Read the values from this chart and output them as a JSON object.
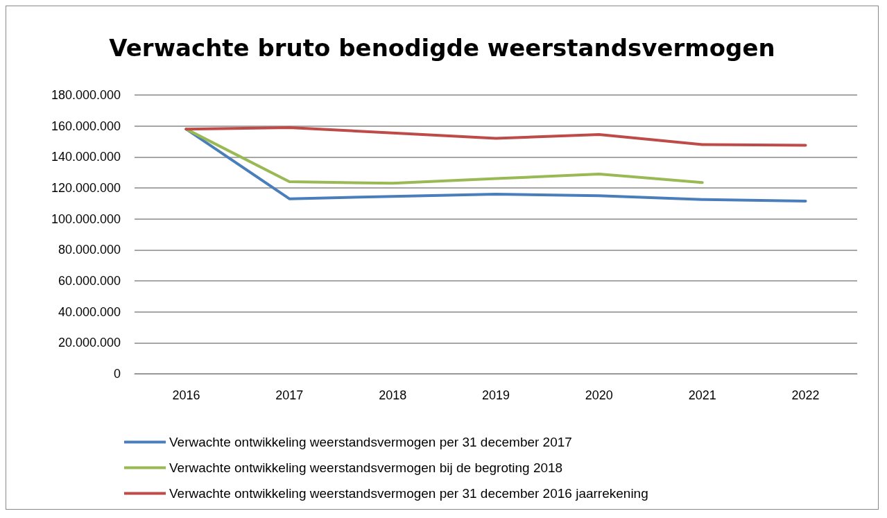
{
  "chart_data": {
    "type": "line",
    "title": "Verwachte bruto benodigde weerstandsvermogen",
    "categories": [
      "2016",
      "2017",
      "2018",
      "2019",
      "2020",
      "2021",
      "2022"
    ],
    "series": [
      {
        "name": "Verwachte ontwikkeling weerstandsvermogen per 31 december 2017",
        "color": "#4a7ebb",
        "values": [
          158000000,
          113000000,
          114500000,
          116000000,
          115000000,
          112500000,
          111500000
        ]
      },
      {
        "name": "Verwachte ontwikkeling weerstandsvermogen bij de begroting 2018",
        "color": "#98b954",
        "values": [
          158000000,
          124000000,
          123000000,
          126000000,
          129000000,
          123500000,
          null
        ]
      },
      {
        "name": "Verwachte ontwikkeling weerstandsvermogen per 31 december 2016 jaarrekening",
        "color": "#be4b48",
        "values": [
          158000000,
          159000000,
          155500000,
          152000000,
          154500000,
          148000000,
          147500000
        ]
      }
    ],
    "ylim": [
      0,
      180000000
    ],
    "yticks": [
      {
        "value": 0,
        "label": "0"
      },
      {
        "value": 20000000,
        "label": "20.000.000"
      },
      {
        "value": 40000000,
        "label": "40.000.000"
      },
      {
        "value": 60000000,
        "label": "60.000.000"
      },
      {
        "value": 80000000,
        "label": "80.000.000"
      },
      {
        "value": 100000000,
        "label": "100.000.000"
      },
      {
        "value": 120000000,
        "label": "120.000.000"
      },
      {
        "value": 140000000,
        "label": "140.000.000"
      },
      {
        "value": 160000000,
        "label": "160.000.000"
      },
      {
        "value": 180000000,
        "label": "180.000.000"
      }
    ],
    "grid": "y",
    "legend": "bottom",
    "marker": "none",
    "line_style": "solid"
  }
}
